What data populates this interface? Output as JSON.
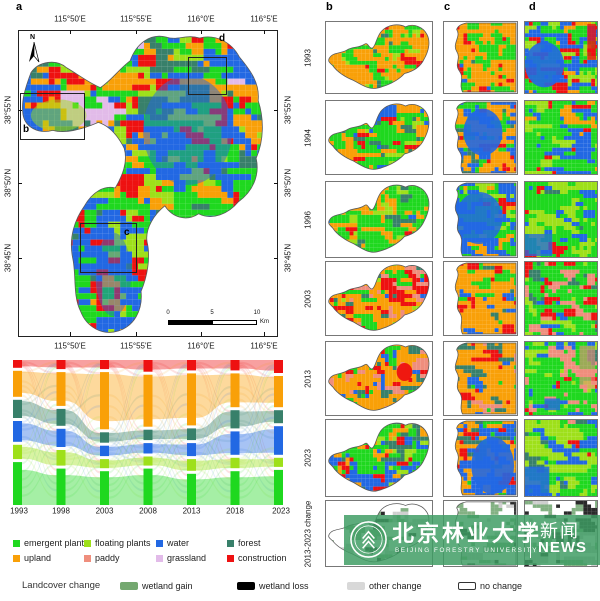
{
  "panels": {
    "a": "a",
    "b": "b",
    "c": "c",
    "d": "d"
  },
  "map_a": {
    "x_axis_labels": [
      "115°50'E",
      "115°55'E",
      "116°0'E",
      "116°5'E"
    ],
    "y_axis_labels": [
      "38°55'N",
      "38°50'N",
      "38°45'N"
    ],
    "inset_boxes": [
      "b",
      "c",
      "d"
    ],
    "north_label": "N",
    "scalebar": {
      "ticks": [
        "0",
        "5",
        "10"
      ],
      "unit": "Km"
    }
  },
  "rows": [
    "1993",
    "1994",
    "1996",
    "2003",
    "2013",
    "2023",
    "2013-2023 change"
  ],
  "chart_data": {
    "type": "area",
    "variant": "alluvial-sankey of landcover class transitions",
    "x": [
      "1993",
      "1998",
      "2003",
      "2008",
      "2013",
      "2018",
      "2023"
    ],
    "xlabel": "",
    "ylabel": "",
    "units": "share of study area, % (estimated visually from column heights)",
    "series": [
      {
        "name": "construction",
        "key": "construction",
        "values": [
          6,
          7,
          7,
          9,
          8,
          8,
          10
        ]
      },
      {
        "name": "upland",
        "key": "upland",
        "values": [
          20,
          26,
          44,
          40,
          40,
          26,
          24
        ]
      },
      {
        "name": "forest",
        "key": "forest",
        "values": [
          14,
          13,
          8,
          8,
          9,
          14,
          10
        ]
      },
      {
        "name": "water",
        "key": "water",
        "values": [
          16,
          14,
          8,
          8,
          10,
          18,
          22
        ]
      },
      {
        "name": "floating plants",
        "key": "floating",
        "values": [
          11,
          12,
          7,
          7,
          9,
          8,
          7
        ]
      },
      {
        "name": "emergent plants",
        "key": "emergent",
        "values": [
          33,
          28,
          26,
          28,
          24,
          26,
          27
        ]
      }
    ],
    "note": "segment order top-to-bottom as drawn; paddy and grassland flows are minor and not separable in the figure"
  },
  "legend_landcover": {
    "items": [
      {
        "key": "emergent",
        "label": "emergent plants",
        "color": "#1FD81F"
      },
      {
        "key": "floating",
        "label": "floating plants",
        "color": "#9EE01A"
      },
      {
        "key": "water",
        "label": "water",
        "color": "#2268E3"
      },
      {
        "key": "forest",
        "label": "forest",
        "color": "#38806A"
      },
      {
        "key": "upland",
        "label": "upland",
        "color": "#F9A008"
      },
      {
        "key": "paddy",
        "label": "paddy",
        "color": "#EF8E7D"
      },
      {
        "key": "grassland",
        "label": "grassland",
        "color": "#E2BBE9"
      },
      {
        "key": "construction",
        "label": "construction",
        "color": "#EE1111"
      }
    ]
  },
  "legend_change": {
    "title": "Landcover change",
    "items": [
      {
        "label": "wetland gain",
        "color": "#74A870"
      },
      {
        "label": "wetland loss",
        "color": "#000000"
      },
      {
        "label": "other change",
        "color": "#D8D8D8"
      },
      {
        "label": "no change",
        "color": "#FFFFFF"
      }
    ]
  },
  "watermark": {
    "university_cn": "北京林业大学",
    "university_en": "BEIJING FORESTRY UNIVERSITY",
    "news_cn": "新闻",
    "news_en": "NEWS",
    "banner_color": "#3E9C63"
  }
}
